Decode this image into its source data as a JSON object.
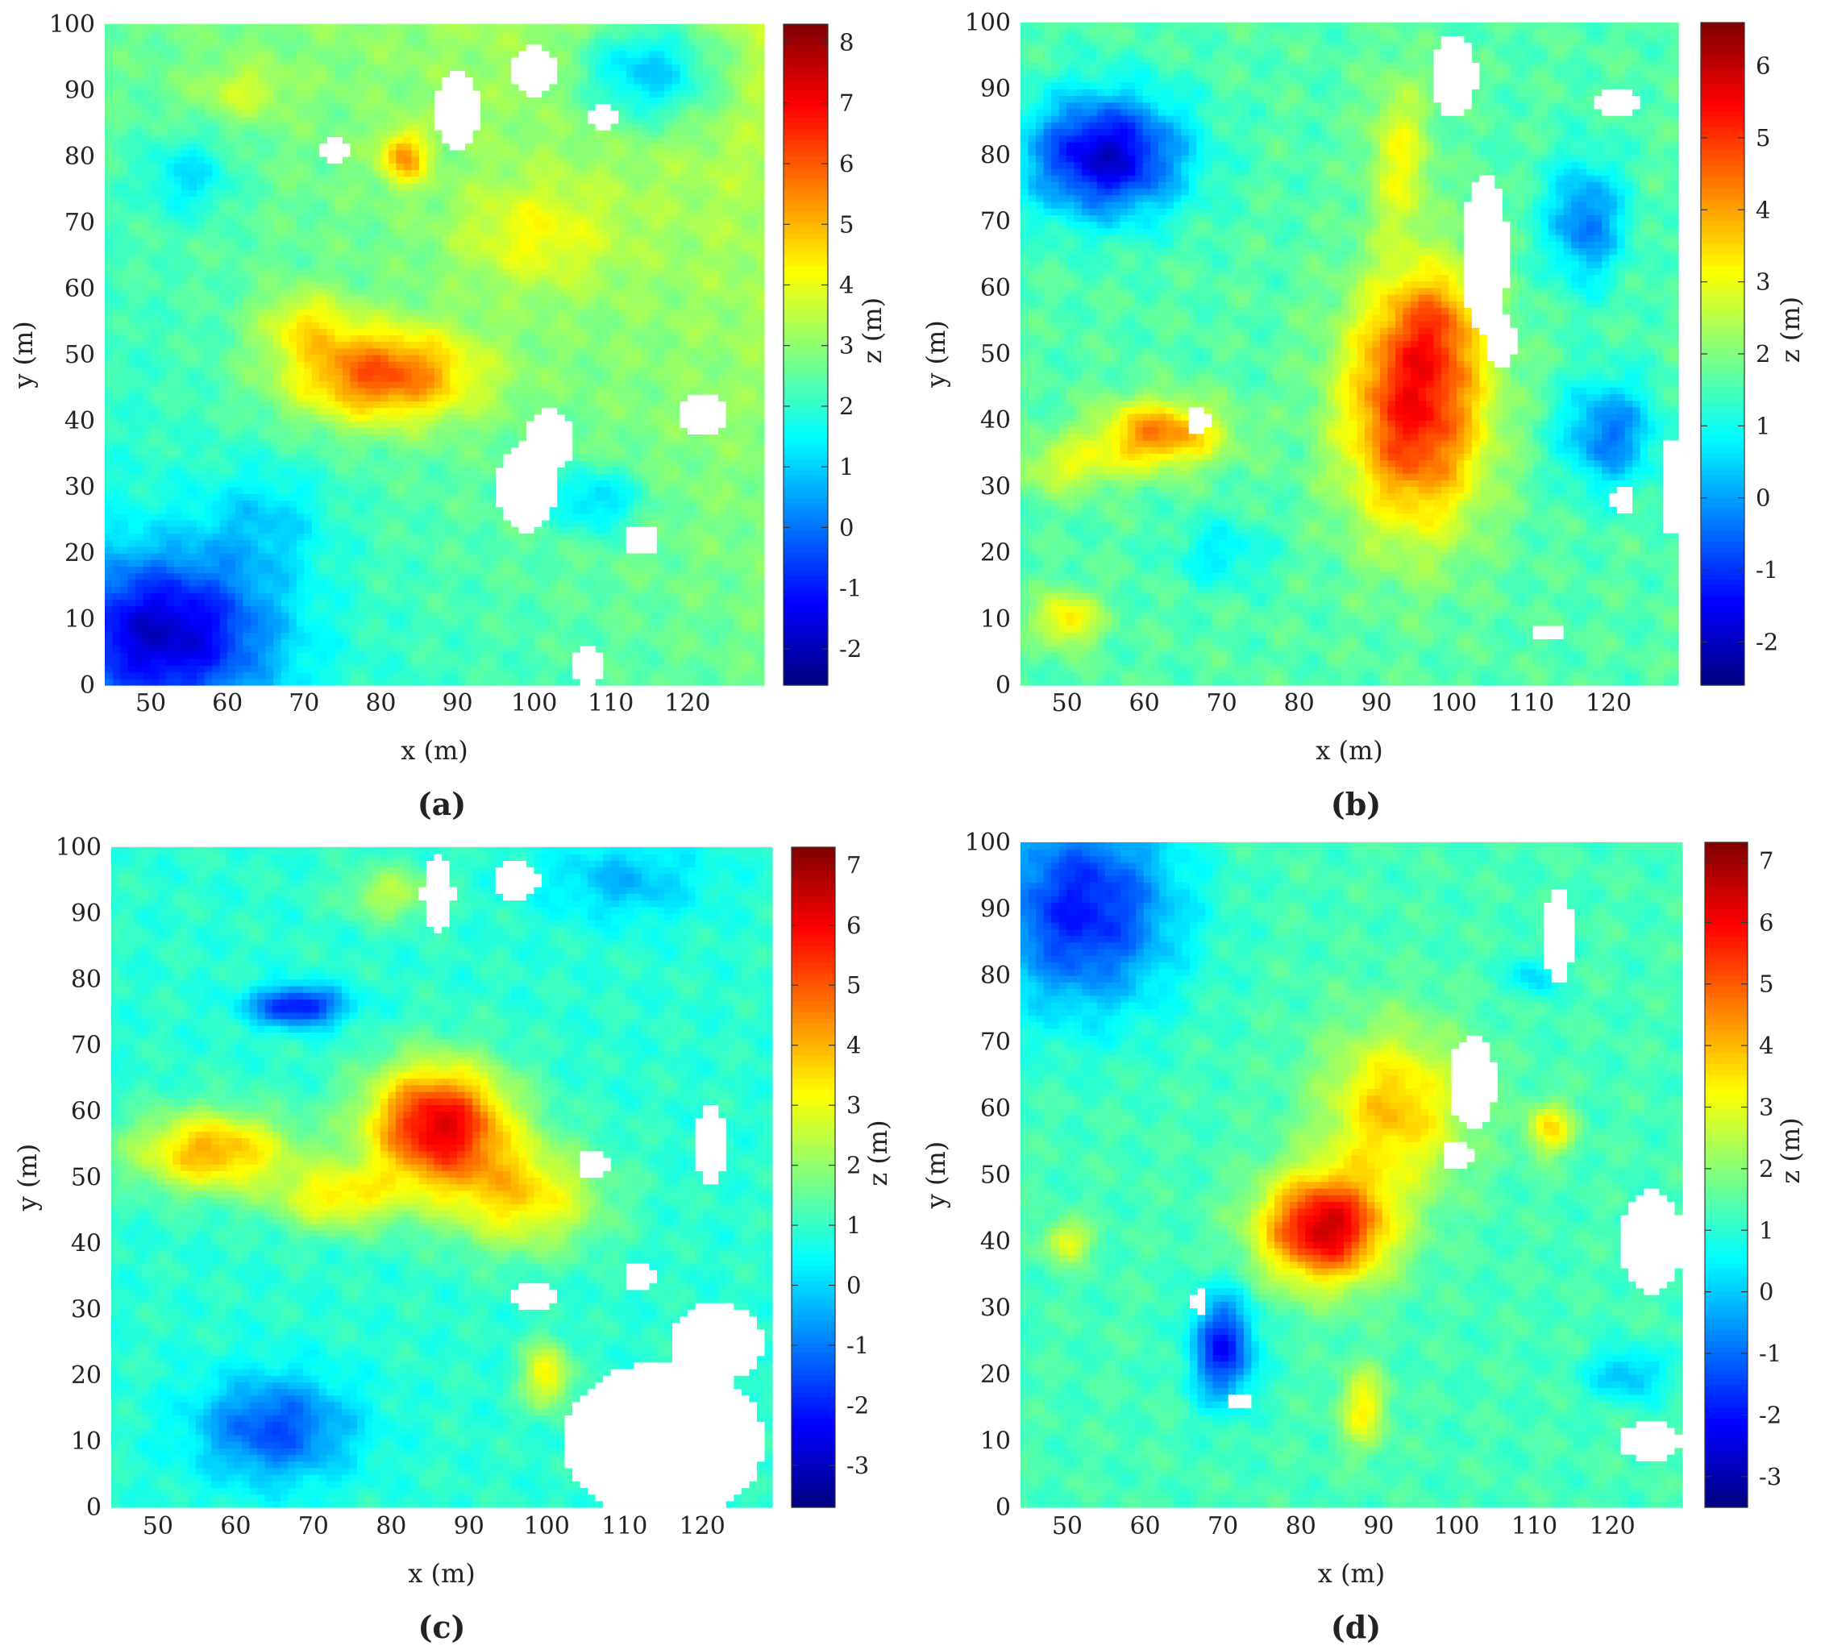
{
  "chart_data": [
    {
      "type": "heatmap",
      "caption": "(a)",
      "xlabel": "x (m)",
      "ylabel": "y (m)",
      "colorbar_label": "z (m)",
      "xlim": [
        44,
        130
      ],
      "ylim": [
        0,
        100
      ],
      "xticks": [
        50,
        60,
        70,
        80,
        90,
        100,
        110,
        120
      ],
      "yticks": [
        0,
        10,
        20,
        30,
        40,
        50,
        60,
        70,
        80,
        90,
        100
      ],
      "clim": [
        -2.6,
        8.3
      ],
      "cticks": [
        -2,
        -1,
        0,
        1,
        2,
        3,
        4,
        5,
        6,
        7,
        8
      ],
      "colormap": "jet",
      "grid": true,
      "field": {
        "base": 1.6,
        "gradient": [
          0.012,
          0.01,
          0,
          0
        ],
        "features": [
          {
            "x": 80,
            "y": 47,
            "sx": 12,
            "sy": 7,
            "a": 3.6
          },
          {
            "x": 70,
            "y": 55,
            "sx": 6,
            "sy": 5,
            "a": 1.5
          },
          {
            "x": 83,
            "y": 80,
            "sx": 3,
            "sy": 4,
            "a": 2.5
          },
          {
            "x": 52,
            "y": 8,
            "sx": 14,
            "sy": 12,
            "a": -3.6
          },
          {
            "x": 115,
            "y": 93,
            "sx": 9,
            "sy": 8,
            "a": -2.4
          },
          {
            "x": 108,
            "y": 28,
            "sx": 6,
            "sy": 5,
            "a": -1.6
          },
          {
            "x": 55,
            "y": 77,
            "sx": 6,
            "sy": 6,
            "a": -1.3
          },
          {
            "x": 62,
            "y": 90,
            "sx": 6,
            "sy": 4,
            "a": 1.0
          },
          {
            "x": 100,
            "y": 68,
            "sx": 10,
            "sy": 8,
            "a": 1.2
          },
          {
            "x": 65,
            "y": 25,
            "sx": 8,
            "sy": 8,
            "a": -1.0
          }
        ],
        "voids": [
          {
            "x": 99,
            "y": 30,
            "rx": 4,
            "ry": 7
          },
          {
            "x": 102,
            "y": 37,
            "rx": 3,
            "ry": 5
          },
          {
            "x": 90,
            "y": 87,
            "rx": 3,
            "ry": 6
          },
          {
            "x": 100,
            "y": 93,
            "rx": 3,
            "ry": 4
          },
          {
            "x": 109,
            "y": 86,
            "rx": 2,
            "ry": 2
          },
          {
            "x": 114,
            "y": 22,
            "rx": 2.5,
            "ry": 2
          },
          {
            "x": 122,
            "y": 41,
            "rx": 3,
            "ry": 3
          },
          {
            "x": 74,
            "y": 81,
            "rx": 1.6,
            "ry": 2
          },
          {
            "x": 107,
            "y": 3,
            "rx": 2.5,
            "ry": 3
          }
        ]
      }
    },
    {
      "type": "heatmap",
      "caption": "(b)",
      "xlabel": "x (m)",
      "ylabel": "y (m)",
      "colorbar_label": "z (m)",
      "xlim": [
        44,
        129
      ],
      "ylim": [
        0,
        100
      ],
      "xticks": [
        50,
        60,
        70,
        80,
        90,
        100,
        110,
        120
      ],
      "yticks": [
        0,
        10,
        20,
        30,
        40,
        50,
        60,
        70,
        80,
        90,
        100
      ],
      "clim": [
        -2.6,
        6.6
      ],
      "cticks": [
        -2,
        -1,
        0,
        1,
        2,
        3,
        4,
        5,
        6
      ],
      "colormap": "jet",
      "grid": true,
      "field": {
        "base": 1.6,
        "gradient": [
          0,
          0,
          0,
          0
        ],
        "features": [
          {
            "x": 95,
            "y": 42,
            "sx": 9,
            "sy": 18,
            "a": 3.8
          },
          {
            "x": 98,
            "y": 55,
            "sx": 6,
            "sy": 8,
            "a": 1.2
          },
          {
            "x": 62,
            "y": 38,
            "sx": 8,
            "sy": 5,
            "a": 2.7
          },
          {
            "x": 50,
            "y": 33,
            "sx": 7,
            "sy": 4,
            "a": 1.2
          },
          {
            "x": 93,
            "y": 80,
            "sx": 4,
            "sy": 12,
            "a": 1.4
          },
          {
            "x": 55,
            "y": 80,
            "sx": 10,
            "sy": 9,
            "a": -3.5
          },
          {
            "x": 117,
            "y": 70,
            "sx": 5,
            "sy": 9,
            "a": -2.0
          },
          {
            "x": 120,
            "y": 38,
            "sx": 6,
            "sy": 8,
            "a": -2.0
          },
          {
            "x": 50,
            "y": 10,
            "sx": 4,
            "sy": 4,
            "a": 1.8
          },
          {
            "x": 70,
            "y": 20,
            "sx": 6,
            "sy": 5,
            "a": -0.9
          }
        ],
        "voids": [
          {
            "x": 104,
            "y": 65,
            "rx": 3,
            "ry": 12
          },
          {
            "x": 106,
            "y": 52,
            "rx": 2,
            "ry": 4
          },
          {
            "x": 100,
            "y": 92,
            "rx": 3,
            "ry": 6
          },
          {
            "x": 121,
            "y": 88,
            "rx": 3,
            "ry": 2
          },
          {
            "x": 67,
            "y": 40,
            "rx": 1.5,
            "ry": 2
          },
          {
            "x": 122,
            "y": 28,
            "rx": 1.5,
            "ry": 2.5
          },
          {
            "x": 128,
            "y": 30,
            "rx": 1,
            "ry": 8
          },
          {
            "x": 112,
            "y": 8,
            "rx": 2,
            "ry": 1.5
          }
        ]
      }
    },
    {
      "type": "heatmap",
      "caption": "(c)",
      "xlabel": "x (m)",
      "ylabel": "y (m)",
      "colorbar_label": "z (m)",
      "xlim": [
        44,
        129
      ],
      "ylim": [
        0,
        100
      ],
      "xticks": [
        50,
        60,
        70,
        80,
        90,
        100,
        110,
        120
      ],
      "yticks": [
        0,
        10,
        20,
        30,
        40,
        50,
        60,
        70,
        80,
        90,
        100
      ],
      "clim": [
        -3.7,
        7.3
      ],
      "cticks": [
        -3,
        -2,
        -1,
        0,
        1,
        2,
        3,
        4,
        5,
        6,
        7
      ],
      "colormap": "jet",
      "grid": true,
      "field": {
        "base": 0.9,
        "gradient": [
          0,
          0,
          0,
          0
        ],
        "features": [
          {
            "x": 86,
            "y": 58,
            "sx": 9,
            "sy": 9,
            "a": 5.3
          },
          {
            "x": 97,
            "y": 47,
            "sx": 10,
            "sy": 8,
            "a": 2.5
          },
          {
            "x": 57,
            "y": 54,
            "sx": 10,
            "sy": 6,
            "a": 3.2
          },
          {
            "x": 73,
            "y": 47,
            "sx": 8,
            "sy": 5,
            "a": 2.3
          },
          {
            "x": 100,
            "y": 20,
            "sx": 3,
            "sy": 5,
            "a": 2.4
          },
          {
            "x": 68,
            "y": 76,
            "sx": 6,
            "sy": 3,
            "a": -3.2
          },
          {
            "x": 65,
            "y": 12,
            "sx": 10,
            "sy": 8,
            "a": -2.4
          },
          {
            "x": 110,
            "y": 95,
            "sx": 10,
            "sy": 6,
            "a": -1.2
          },
          {
            "x": 80,
            "y": 93,
            "sx": 6,
            "sy": 4,
            "a": 1.5
          }
        ],
        "voids": [
          {
            "x": 115,
            "y": 10,
            "rx": 13,
            "ry": 12
          },
          {
            "x": 122,
            "y": 25,
            "rx": 6,
            "ry": 6
          },
          {
            "x": 86,
            "y": 93,
            "rx": 2,
            "ry": 6
          },
          {
            "x": 96,
            "y": 95,
            "rx": 3,
            "ry": 3
          },
          {
            "x": 106,
            "y": 52,
            "rx": 2,
            "ry": 2
          },
          {
            "x": 98,
            "y": 32,
            "rx": 3,
            "ry": 2
          },
          {
            "x": 112,
            "y": 35,
            "rx": 2,
            "ry": 2
          },
          {
            "x": 121,
            "y": 55,
            "rx": 2,
            "ry": 6
          }
        ]
      }
    },
    {
      "type": "heatmap",
      "caption": "(d)",
      "xlabel": "x (m)",
      "ylabel": "y (m)",
      "colorbar_label": "z (m)",
      "xlim": [
        44,
        129
      ],
      "ylim": [
        0,
        100
      ],
      "xticks": [
        50,
        60,
        70,
        80,
        90,
        100,
        110,
        120
      ],
      "yticks": [
        0,
        10,
        20,
        30,
        40,
        50,
        60,
        70,
        80,
        90,
        100
      ],
      "clim": [
        -3.5,
        7.3
      ],
      "cticks": [
        -3,
        -2,
        -1,
        0,
        1,
        2,
        3,
        4,
        5,
        6,
        7
      ],
      "colormap": "jet",
      "grid": true,
      "field": {
        "base": 1.3,
        "gradient": [
          0,
          0,
          0,
          0
        ],
        "features": [
          {
            "x": 83,
            "y": 42,
            "sx": 8,
            "sy": 8,
            "a": 5.2
          },
          {
            "x": 92,
            "y": 60,
            "sx": 9,
            "sy": 12,
            "a": 2.6
          },
          {
            "x": 88,
            "y": 15,
            "sx": 3,
            "sy": 6,
            "a": 2.0
          },
          {
            "x": 112,
            "y": 57,
            "sx": 3,
            "sy": 4,
            "a": 2.2
          },
          {
            "x": 52,
            "y": 90,
            "sx": 12,
            "sy": 15,
            "a": -3.2
          },
          {
            "x": 70,
            "y": 24,
            "sx": 4,
            "sy": 8,
            "a": -3.3
          },
          {
            "x": 50,
            "y": 40,
            "sx": 3,
            "sy": 3,
            "a": 1.8
          },
          {
            "x": 122,
            "y": 20,
            "sx": 5,
            "sy": 4,
            "a": -1.5
          },
          {
            "x": 110,
            "y": 80,
            "sx": 3,
            "sy": 3,
            "a": -1.2
          }
        ],
        "voids": [
          {
            "x": 102,
            "y": 64,
            "rx": 3,
            "ry": 7
          },
          {
            "x": 100,
            "y": 53,
            "rx": 2,
            "ry": 2
          },
          {
            "x": 113,
            "y": 86,
            "rx": 2,
            "ry": 7
          },
          {
            "x": 125,
            "y": 40,
            "rx": 4,
            "ry": 8
          },
          {
            "x": 125,
            "y": 10,
            "rx": 4,
            "ry": 3
          },
          {
            "x": 67,
            "y": 31,
            "rx": 1,
            "ry": 2
          },
          {
            "x": 72,
            "y": 16,
            "rx": 1.3,
            "ry": 1.3
          }
        ]
      }
    }
  ]
}
